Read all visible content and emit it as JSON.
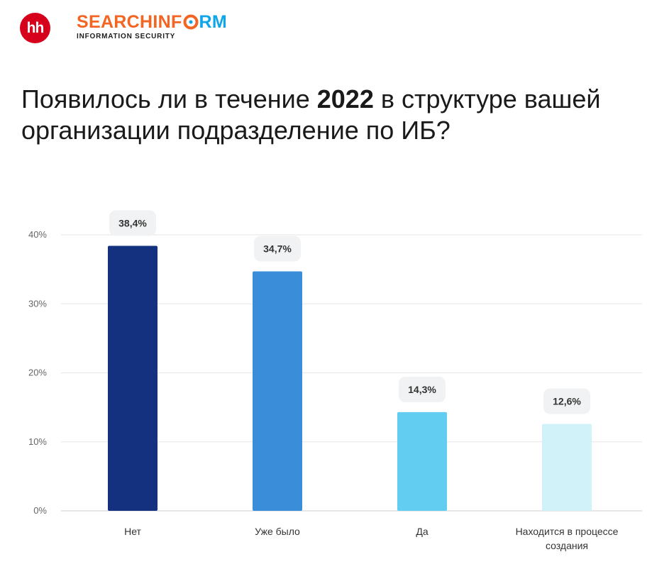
{
  "header": {
    "hh_logo": "hh",
    "brand_search": "SEARCHINF",
    "brand_inform": "RM",
    "brand_tagline": "INFORMATION SECURITY"
  },
  "title": {
    "part1": "Появилось ли в течение ",
    "year": "2022",
    "part2": " в структуре вашей организации подразделение по ИБ?"
  },
  "chart_data": {
    "type": "bar",
    "categories": [
      "Нет",
      "Уже было",
      "Да",
      [
        "Находится в процессе",
        "создания"
      ]
    ],
    "values": [
      38.4,
      34.7,
      14.3,
      12.6
    ],
    "data_labels": [
      "38,4%",
      "34,7%",
      "14,3%",
      "12,6%"
    ],
    "colors": [
      "#13317f",
      "#3a8dd8",
      "#62cdf0",
      "#d2f2fa"
    ],
    "ylim": [
      0,
      40
    ],
    "yticks": [
      0,
      10,
      20,
      30,
      40
    ],
    "ytick_labels": [
      "0%",
      "10%",
      "20%",
      "30%",
      "40%"
    ],
    "grid": true,
    "title": "",
    "xlabel": "",
    "ylabel": ""
  }
}
